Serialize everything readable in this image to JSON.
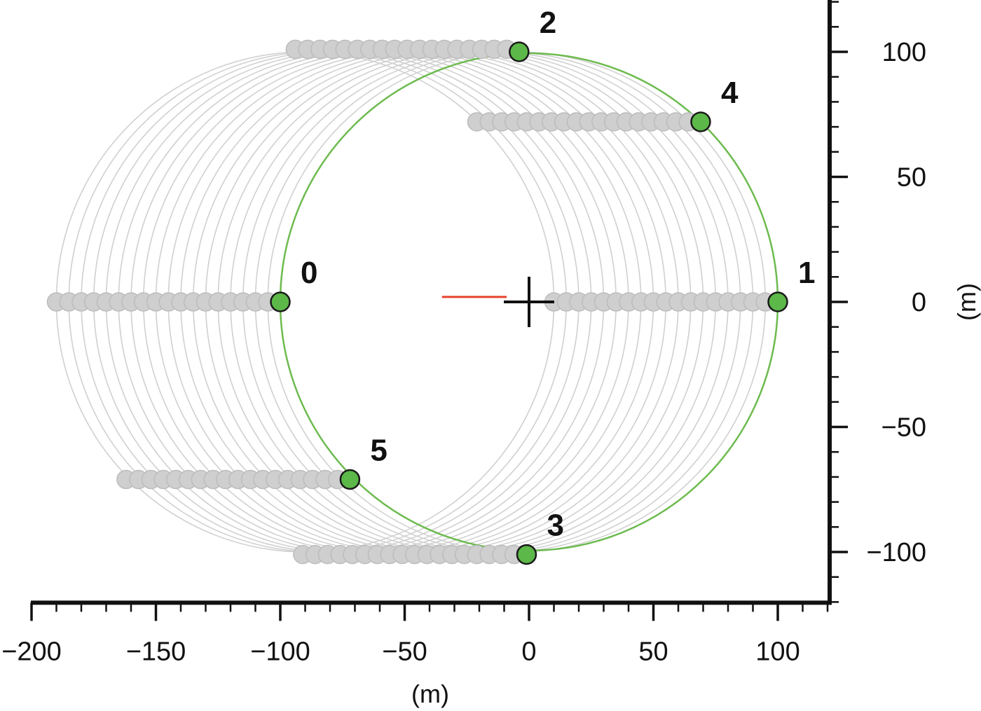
{
  "chart_data": {
    "type": "scatter",
    "title": "",
    "xlabel": "(m)",
    "ylabel": "(m)",
    "xlim": [
      -200,
      120
    ],
    "ylim": [
      -120,
      120
    ],
    "x_ticks": [
      -200,
      -150,
      -100,
      -50,
      0,
      50,
      100
    ],
    "y_ticks": [
      -100,
      -50,
      0,
      50,
      100
    ],
    "x_tick_labels": [
      "−200",
      "−150",
      "−100",
      "−50",
      "0",
      "50",
      "100"
    ],
    "y_tick_labels": [
      "−100",
      "−50",
      "0",
      "50",
      "100"
    ],
    "grid": false,
    "circle_radius": 100,
    "circle_color": "#6dbb4f",
    "ghost_circle_color": "#d0d0d0",
    "ghost_circle_centers_x": [
      -90,
      -85,
      -80,
      -75,
      -70,
      -65,
      -60,
      -55,
      -50,
      -45,
      -40,
      -35,
      -30,
      -25,
      -20,
      -15,
      -10,
      -5
    ],
    "marker_color": "#5cb848",
    "ghost_marker_color": "#cfcfcf",
    "points": [
      {
        "label": "0",
        "x": -100,
        "y": 0
      },
      {
        "label": "1",
        "x": 100,
        "y": 0
      },
      {
        "label": "2",
        "x": -4,
        "y": 100
      },
      {
        "label": "3",
        "x": -1,
        "y": -101
      },
      {
        "label": "4",
        "x": 69,
        "y": 72
      },
      {
        "label": "5",
        "x": -72,
        "y": -71
      }
    ],
    "trails": [
      {
        "y": 0,
        "x_from": -190,
        "x_to": -100
      },
      {
        "y": 0,
        "x_from": 10,
        "x_to": 100
      },
      {
        "y": 101,
        "x_from": -94,
        "x_to": -4
      },
      {
        "y": -101,
        "x_from": -91,
        "x_to": -1
      },
      {
        "y": 72,
        "x_from": -21,
        "x_to": 69
      },
      {
        "y": -71,
        "x_from": -162,
        "x_to": -72
      }
    ],
    "origin_marker": {
      "x": 0,
      "y": 0
    },
    "heading_line": {
      "x_from": -35,
      "x_to": -9,
      "y": 2,
      "color": "#e8412c"
    }
  }
}
